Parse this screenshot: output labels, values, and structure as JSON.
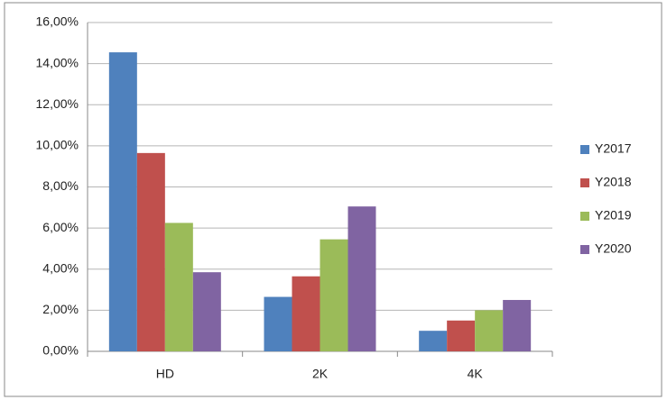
{
  "chart_data": {
    "type": "bar",
    "categories": [
      "HD",
      "2K",
      "4K"
    ],
    "series": [
      {
        "name": "Y2017",
        "color": "#4f81bd",
        "values": [
          14.55,
          2.65,
          1.0
        ]
      },
      {
        "name": "Y2018",
        "color": "#c0504d",
        "values": [
          9.65,
          3.65,
          1.5
        ]
      },
      {
        "name": "Y2019",
        "color": "#9bbb59",
        "values": [
          6.25,
          5.45,
          2.0
        ]
      },
      {
        "name": "Y2020",
        "color": "#8064a2",
        "values": [
          3.85,
          7.05,
          2.5
        ]
      }
    ],
    "ylim": [
      0,
      16
    ],
    "yticks": [
      {
        "value": 0,
        "label": "0,00%"
      },
      {
        "value": 2,
        "label": "2,00%"
      },
      {
        "value": 4,
        "label": "4,00%"
      },
      {
        "value": 6,
        "label": "6,00%"
      },
      {
        "value": 8,
        "label": "8,00%"
      },
      {
        "value": 10,
        "label": "10,00%"
      },
      {
        "value": 12,
        "label": "12,00%"
      },
      {
        "value": 14,
        "label": "14,00%"
      },
      {
        "value": 16,
        "label": "16,00%"
      }
    ],
    "grid": true,
    "legend": "right"
  }
}
